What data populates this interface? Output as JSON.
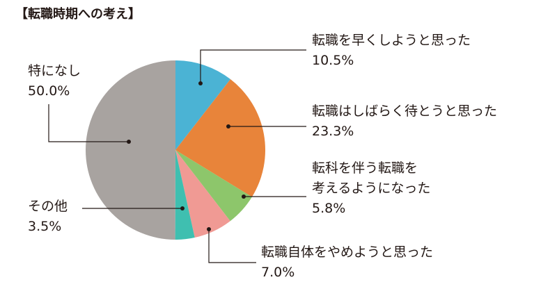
{
  "chart_data": {
    "type": "pie",
    "title": "【転職時期への考え】",
    "categories": [
      "転職を早くしようと思った",
      "転職はしばらく待とうと思った",
      "転科を伴う転職を\n考えるようになった",
      "転職自体をやめようと思った",
      "その他",
      "特になし"
    ],
    "values": [
      10.5,
      23.3,
      5.8,
      7.0,
      3.5,
      50.0
    ],
    "value_labels": [
      "10.5%",
      "23.3%",
      "5.8%",
      "7.0%",
      "3.5%",
      "50.0%"
    ],
    "colors": [
      "#4bb3d4",
      "#e8843a",
      "#8dc66b",
      "#f09a94",
      "#3fbfb0",
      "#a8a3a0"
    ]
  }
}
